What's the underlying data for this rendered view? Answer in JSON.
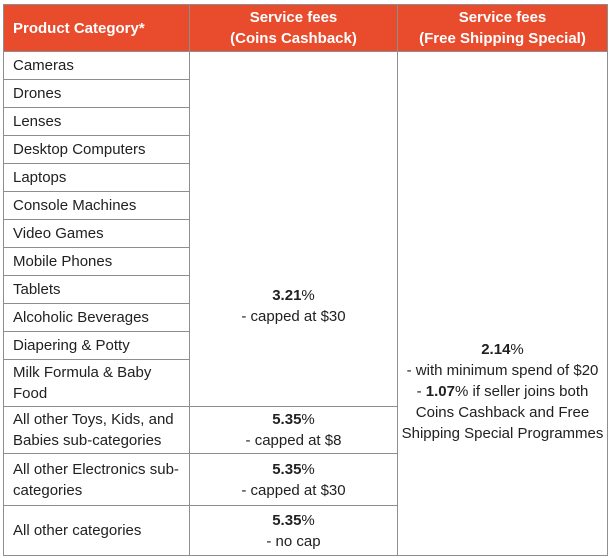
{
  "header": {
    "col1": "Product Category*",
    "col2_line1": "Service fees",
    "col2_line2": "(Coins Cashback)",
    "col3_line1": "Service fees",
    "col3_line2": "(Free Shipping Special)"
  },
  "categories": [
    "Cameras",
    "Drones",
    "Lenses",
    "Desktop Computers",
    "Laptops",
    "Console Machines",
    "Video Games",
    "Mobile Phones",
    "Tablets",
    "Alcoholic Beverages",
    "Diapering & Potty",
    "Milk Formula & Baby Food"
  ],
  "coins_cashback_merged": {
    "rate": "3.21",
    "rate_suffix": "%",
    "note": "- capped at $30"
  },
  "free_shipping_merged": {
    "rate": "2.14",
    "rate_suffix": "%",
    "line2": "- with minimum spend of $20",
    "line3_prefix": "- ",
    "line3_bold": "1.07",
    "line3_suffix": "% if seller joins both",
    "line4": "Coins Cashback and Free",
    "line5": "Shipping Special Programmes"
  },
  "other_rows": [
    {
      "category": "All other Toys, Kids, and Babies sub-categories",
      "rate": "5.35",
      "rate_suffix": "%",
      "note": "- capped at $8"
    },
    {
      "category": "All other Electronics sub-categories",
      "rate": "5.35",
      "rate_suffix": "%",
      "note": "- capped at $30"
    },
    {
      "category": "All other categories",
      "rate": "5.35",
      "rate_suffix": "%",
      "note": "- no cap"
    }
  ],
  "colors": {
    "header_bg": "#E94B2D",
    "header_text": "#FFFFFF",
    "border": "#8E8E8E",
    "body_text": "#212121"
  }
}
